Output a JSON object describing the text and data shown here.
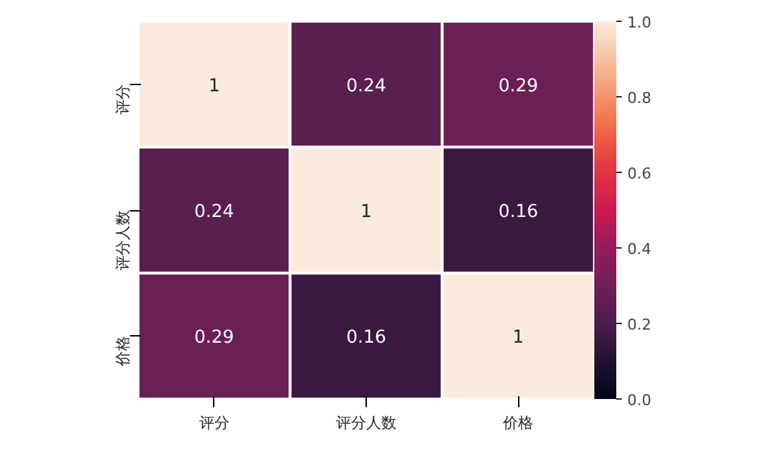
{
  "chart_data": {
    "type": "heatmap",
    "categories": [
      "评分",
      "评分人数",
      "价格"
    ],
    "y_categories": [
      "评分",
      "评分人数",
      "价格"
    ],
    "cells": [
      [
        1,
        0.24,
        0.29
      ],
      [
        0.24,
        1,
        0.16
      ],
      [
        0.29,
        0.16,
        1
      ]
    ],
    "data_labels": true,
    "clim": [
      0,
      1
    ],
    "cticks": [
      {
        "value": 0,
        "label": "0.0"
      },
      {
        "value": 0.2,
        "label": "0.2"
      },
      {
        "value": 0.4,
        "label": "0.4"
      },
      {
        "value": 0.6,
        "label": "0.6"
      },
      {
        "value": 0.8,
        "label": "0.8"
      },
      {
        "value": 1,
        "label": "1.0"
      }
    ]
  }
}
